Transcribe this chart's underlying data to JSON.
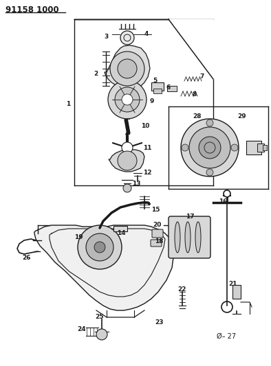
{
  "title": "91158 1000",
  "bg_color": "#ffffff",
  "line_color": "#1a1a1a",
  "fig_width": 3.94,
  "fig_height": 5.33,
  "dpi": 100
}
